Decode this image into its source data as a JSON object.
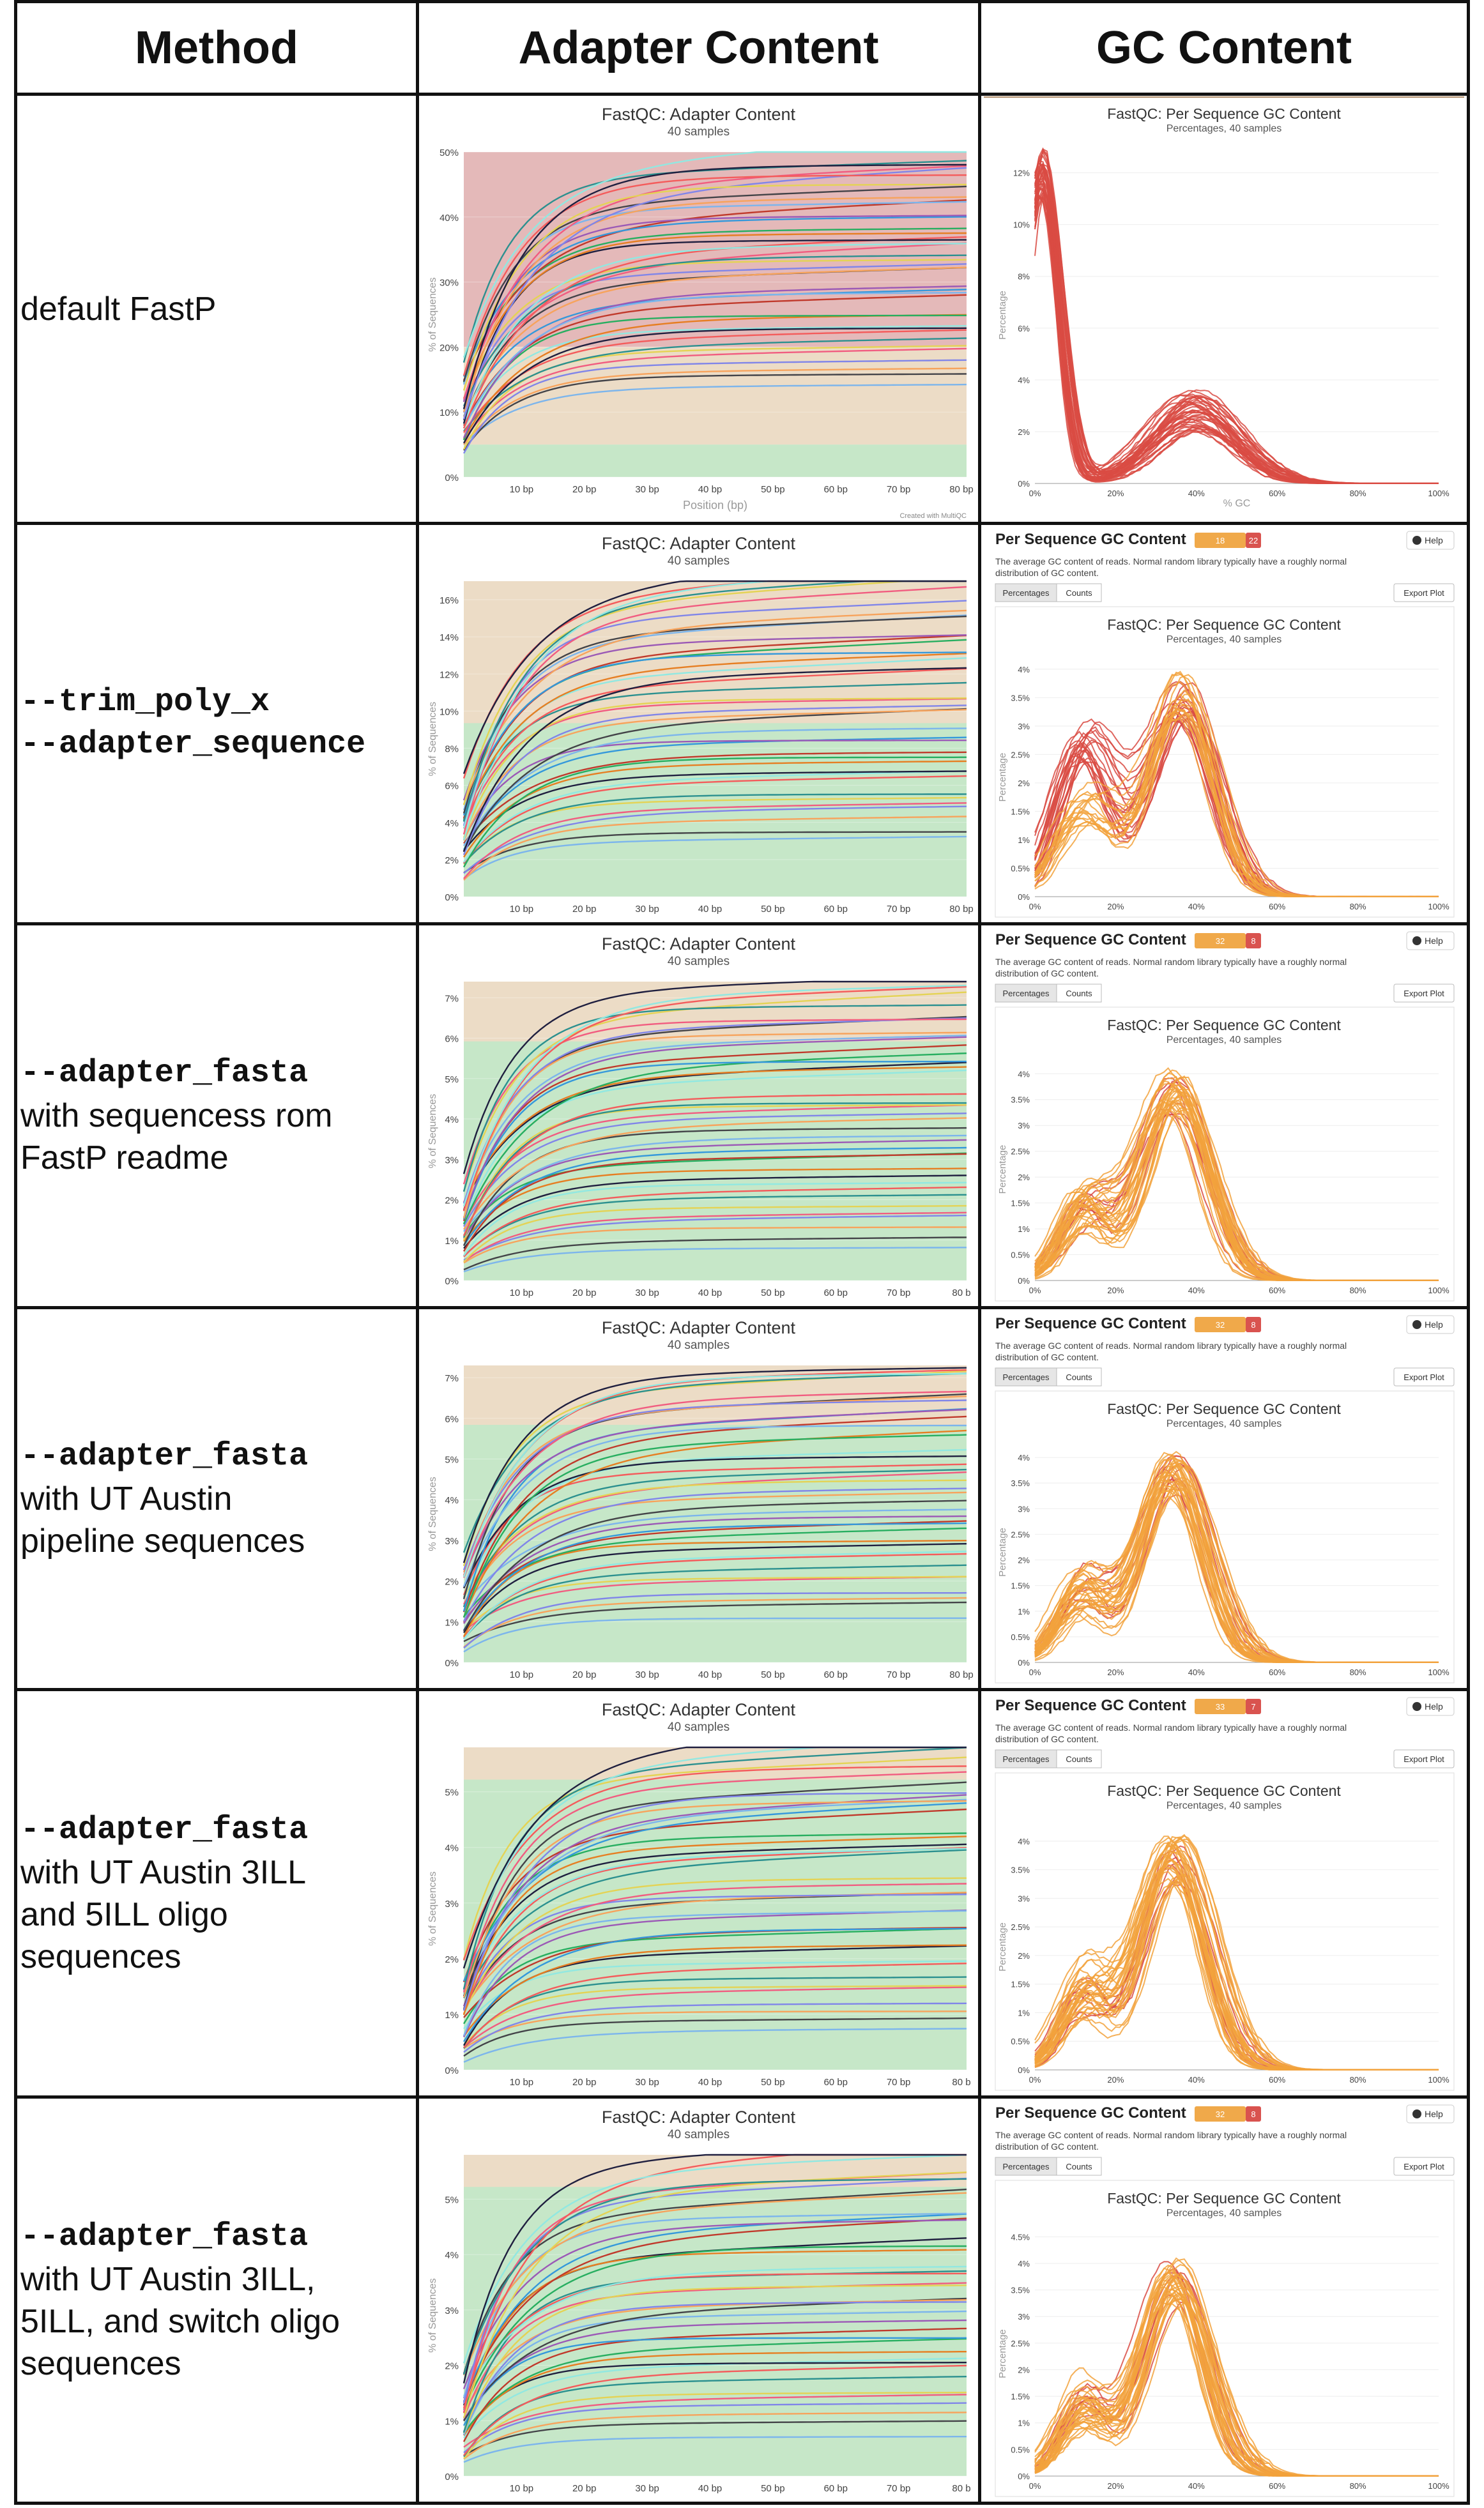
{
  "headers": {
    "method": "Method",
    "adapter": "Adapter Content",
    "gc": "GC Content"
  },
  "rows": [
    {
      "lines": [
        {
          "text": "default FastP",
          "mono": false
        }
      ]
    },
    {
      "lines": [
        {
          "text": "--trim_poly_x",
          "mono": true
        },
        {
          "text": "--adapter_sequence",
          "mono": true
        }
      ]
    },
    {
      "lines": [
        {
          "text": "--adapter_fasta",
          "mono": true
        },
        {
          "text": "with sequencess rom",
          "mono": false
        },
        {
          "text": "FastP readme",
          "mono": false
        }
      ]
    },
    {
      "lines": [
        {
          "text": "--adapter_fasta",
          "mono": true
        },
        {
          "text": "with UT Austin",
          "mono": false
        },
        {
          "text": "pipeline sequences",
          "mono": false
        }
      ]
    },
    {
      "lines": [
        {
          "text": "--adapter_fasta",
          "mono": true
        },
        {
          "text": "with UT Austin 3ILL",
          "mono": false
        },
        {
          "text": "and 5ILL oligo",
          "mono": false
        },
        {
          "text": "sequences",
          "mono": false
        }
      ]
    },
    {
      "lines": [
        {
          "text": "--adapter_fasta",
          "mono": true
        },
        {
          "text": "with UT Austin 3ILL,",
          "mono": false
        },
        {
          "text": "5ILL, and switch oligo",
          "mono": false
        },
        {
          "text": "sequences",
          "mono": false
        }
      ]
    }
  ],
  "adapter_plots": [
    {
      "title": "FastQC: Adapter Content",
      "subtitle": "40 samples",
      "yticks": [
        "0%",
        "10%",
        "20%",
        "30%",
        "40%",
        "50%"
      ],
      "ymax": 50,
      "xticks": [
        "10 bp",
        "20 bp",
        "30 bp",
        "40 bp",
        "50 bp",
        "60 bp",
        "70 bp",
        "80 bp"
      ],
      "ylabel": "% of Sequences",
      "xlabel": "Position (bp)",
      "footer": "Created with MultiQC",
      "plateau_min": 14,
      "plateau_max": 48,
      "bands": "red"
    },
    {
      "title": "FastQC: Adapter Content",
      "subtitle": "40 samples",
      "yticks": [
        "0%",
        "2%",
        "4%",
        "6%",
        "8%",
        "10%",
        "12%",
        "14%",
        "16%"
      ],
      "ymax": 17,
      "xticks": [
        "10 bp",
        "20 bp",
        "30 bp",
        "40 bp",
        "50 bp",
        "60 bp",
        "70 bp",
        "80 bp"
      ],
      "ylabel": "% of Sequences",
      "xlabel": "",
      "footer": "",
      "plateau_min": 3,
      "plateau_max": 16.6,
      "bands": "tan"
    },
    {
      "title": "FastQC: Adapter Content",
      "subtitle": "40 samples",
      "yticks": [
        "0%",
        "1%",
        "2%",
        "3%",
        "4%",
        "5%",
        "6%",
        "7%"
      ],
      "ymax": 7.4,
      "xticks": [
        "10 bp",
        "20 bp",
        "30 bp",
        "40 bp",
        "50 bp",
        "60 bp",
        "70 bp",
        "80 b"
      ],
      "ylabel": "% of Sequences",
      "xlabel": "",
      "footer": "",
      "plateau_min": 0.8,
      "plateau_max": 7.1,
      "bands": "tan"
    },
    {
      "title": "FastQC: Adapter Content",
      "subtitle": "40 samples",
      "yticks": [
        "0%",
        "1%",
        "2%",
        "3%",
        "4%",
        "5%",
        "6%",
        "7%"
      ],
      "ymax": 7.3,
      "xticks": [
        "10 bp",
        "20 bp",
        "30 bp",
        "40 bp",
        "50 bp",
        "60 bp",
        "70 bp",
        "80 bp"
      ],
      "ylabel": "% of Sequences",
      "xlabel": "",
      "footer": "",
      "plateau_min": 1.1,
      "plateau_max": 7.1,
      "bands": "tan"
    },
    {
      "title": "FastQC: Adapter Content",
      "subtitle": "40 samples",
      "yticks": [
        "0%",
        "1%",
        "2%",
        "3%",
        "4%",
        "5%"
      ],
      "ymax": 5.8,
      "xticks": [
        "10 bp",
        "20 bp",
        "30 bp",
        "40 bp",
        "50 bp",
        "60 bp",
        "70 bp",
        "80 b"
      ],
      "ylabel": "% of Sequences",
      "xlabel": "",
      "footer": "",
      "plateau_min": 0.7,
      "plateau_max": 5.6,
      "bands": "tan"
    },
    {
      "title": "FastQC: Adapter Content",
      "subtitle": "40 samples",
      "yticks": [
        "0%",
        "1%",
        "2%",
        "3%",
        "4%",
        "5%"
      ],
      "ymax": 5.8,
      "xticks": [
        "10 bp",
        "20 bp",
        "30 bp",
        "40 bp",
        "50 bp",
        "60 bp",
        "70 bp",
        "80 b"
      ],
      "ylabel": "% of Sequences",
      "xlabel": "",
      "footer": "",
      "plateau_min": 0.7,
      "plateau_max": 5.6,
      "bands": "tan"
    }
  ],
  "gc_panels": [
    {
      "has_header": false,
      "header_title": "",
      "badge_a": "",
      "badge_b": "",
      "help": "",
      "desc": "",
      "btn_pct": "",
      "btn_counts": "",
      "export": "",
      "title": "FastQC: Per Sequence GC Content",
      "subtitle": "Percentages, 40 samples",
      "yticks": [
        "0%",
        "2%",
        "4%",
        "6%",
        "8%",
        "10%",
        "12%"
      ],
      "ymax": 13,
      "xticks": [
        "0%",
        "20%",
        "40%",
        "60%",
        "80%",
        "100%"
      ],
      "ylabel": "Percentage",
      "xlabel": "% GC",
      "profile": "bimodal_red"
    },
    {
      "has_header": true,
      "header_title": "Per Sequence GC Content",
      "badge_a": "18",
      "badge_b": "22",
      "help": "Help",
      "desc": "The average GC content of reads. Normal random library typically have a roughly normal distribution of GC content.",
      "btn_pct": "Percentages",
      "btn_counts": "Counts",
      "export": "Export Plot",
      "title": "FastQC: Per Sequence GC Content",
      "subtitle": "Percentages, 40 samples",
      "yticks": [
        "0%",
        "0.5%",
        "1%",
        "1.5%",
        "2%",
        "2.5%",
        "3%",
        "3.5%",
        "4%"
      ],
      "ymax": 4.2,
      "xticks": [
        "0%",
        "20%",
        "40%",
        "60%",
        "80%",
        "100%"
      ],
      "ylabel": "Percentage",
      "xlabel": "",
      "profile": "twin"
    },
    {
      "has_header": true,
      "header_title": "Per Sequence GC Content",
      "badge_a": "32",
      "badge_b": "8",
      "help": "Help",
      "desc": "The average GC content of reads. Normal random library typically have a roughly normal distribution of GC content.",
      "btn_pct": "Percentages",
      "btn_counts": "Counts",
      "export": "Export Plot",
      "title": "FastQC: Per Sequence GC Content",
      "subtitle": "Percentages, 40 samples",
      "yticks": [
        "0%",
        "0.5%",
        "1%",
        "1.5%",
        "2%",
        "2.5%",
        "3%",
        "3.5%",
        "4%"
      ],
      "ymax": 4.3,
      "xticks": [
        "0%",
        "20%",
        "40%",
        "60%",
        "80%",
        "100%"
      ],
      "ylabel": "Percentage",
      "xlabel": "",
      "profile": "orange"
    },
    {
      "has_header": true,
      "header_title": "Per Sequence GC Content",
      "badge_a": "32",
      "badge_b": "8",
      "help": "Help",
      "desc": "The average GC content of reads. Normal random library typically have a roughly normal distribution of GC content.",
      "btn_pct": "Percentages",
      "btn_counts": "Counts",
      "export": "Export Plot",
      "title": "FastQC: Per Sequence GC Content",
      "subtitle": "Percentages, 40 samples",
      "yticks": [
        "0%",
        "0.5%",
        "1%",
        "1.5%",
        "2%",
        "2.5%",
        "3%",
        "3.5%",
        "4%"
      ],
      "ymax": 4.3,
      "xticks": [
        "0%",
        "20%",
        "40%",
        "60%",
        "80%",
        "100%"
      ],
      "ylabel": "Percentage",
      "xlabel": "",
      "profile": "orange"
    },
    {
      "has_header": true,
      "header_title": "Per Sequence GC Content",
      "badge_a": "33",
      "badge_b": "7",
      "help": "Help",
      "desc": "The average GC content of reads. Normal random library typically have a roughly normal distribution of GC content.",
      "btn_pct": "Percentages",
      "btn_counts": "Counts",
      "export": "Export Plot",
      "title": "FastQC: Per Sequence GC Content",
      "subtitle": "Percentages, 40 samples",
      "yticks": [
        "0%",
        "0.5%",
        "1%",
        "1.5%",
        "2%",
        "2.5%",
        "3%",
        "3.5%",
        "4%"
      ],
      "ymax": 4.3,
      "xticks": [
        "0%",
        "20%",
        "40%",
        "60%",
        "80%",
        "100%"
      ],
      "ylabel": "Percentage",
      "xlabel": "",
      "profile": "orange"
    },
    {
      "has_header": true,
      "header_title": "Per Sequence GC Content",
      "badge_a": "32",
      "badge_b": "8",
      "help": "Help",
      "desc": "The average GC content of reads. Normal random library typically have a roughly normal distribution of GC content.",
      "btn_pct": "Percentages",
      "btn_counts": "Counts",
      "export": "Export Plot",
      "title": "FastQC: Per Sequence GC Content",
      "subtitle": "Percentages, 40 samples",
      "yticks": [
        "0%",
        "0.5%",
        "1%",
        "1.5%",
        "2%",
        "2.5%",
        "3%",
        "3.5%",
        "4%",
        "4.5%"
      ],
      "ymax": 4.6,
      "xticks": [
        "0%",
        "20%",
        "40%",
        "60%",
        "80%",
        "100%"
      ],
      "ylabel": "Percentage",
      "xlabel": "",
      "profile": "orange"
    }
  ],
  "colors": {
    "grid_border": "#111111",
    "band_red": "#e4b9b9",
    "band_tan": "#ecdcc6",
    "band_green": "#c6e7c8",
    "gc_red": "#d94b43",
    "gc_orange": "#f2a23c",
    "badge_orange": "#f0a94a",
    "badge_red": "#d9534f"
  }
}
